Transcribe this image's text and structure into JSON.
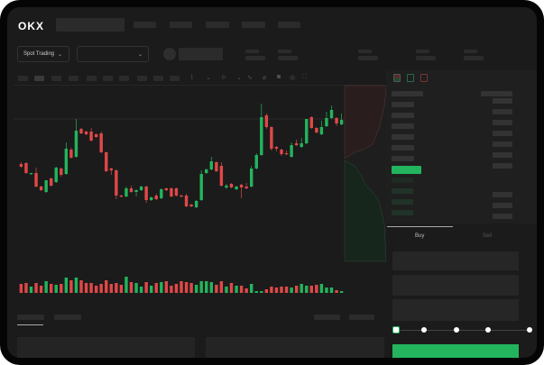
{
  "brand": {
    "logo": "OKX"
  },
  "toolbar": {
    "market_select": "Spot Trading"
  },
  "order_form": {
    "buy_tab": "Buy",
    "sell_tab": "Sell",
    "leverage_slider_value": 0,
    "accent": "#23b45d"
  },
  "colors": {
    "up": "#23b45d",
    "down": "#e04848",
    "background": "#1b1b1b"
  },
  "chart": {
    "type": "candlestick",
    "ohlc": [
      [
        118,
        120,
        114,
        115
      ],
      [
        119,
        120,
        107,
        108
      ],
      [
        107,
        108,
        106,
        108
      ],
      [
        108,
        114,
        92,
        93
      ],
      [
        93,
        94,
        88,
        89
      ],
      [
        87,
        100,
        86,
        100
      ],
      [
        102,
        103,
        93,
        94
      ],
      [
        98,
        115,
        97,
        114
      ],
      [
        113,
        114,
        104,
        106
      ],
      [
        107,
        142,
        106,
        135
      ],
      [
        134,
        136,
        124,
        125
      ],
      [
        126,
        168,
        125,
        155
      ],
      [
        157,
        158,
        151,
        152
      ],
      [
        154,
        155,
        150,
        151
      ],
      [
        154,
        158,
        143,
        144
      ],
      [
        151,
        152,
        147,
        148
      ],
      [
        152,
        154,
        130,
        131
      ],
      [
        131,
        132,
        109,
        110
      ],
      [
        113,
        114,
        106,
        111
      ],
      [
        111,
        112,
        79,
        83
      ],
      [
        83,
        84,
        81,
        82
      ],
      [
        82,
        93,
        81,
        91
      ],
      [
        91,
        94,
        86,
        87
      ],
      [
        87,
        90,
        82,
        89
      ],
      [
        89,
        94,
        88,
        93
      ],
      [
        93,
        94,
        75,
        78
      ],
      [
        78,
        82,
        77,
        81
      ],
      [
        83,
        85,
        78,
        79
      ],
      [
        80,
        91,
        79,
        90
      ],
      [
        91,
        92,
        88,
        89
      ],
      [
        91,
        92,
        81,
        82
      ],
      [
        91,
        92,
        82,
        83
      ],
      [
        83,
        84,
        81,
        82
      ],
      [
        83,
        85,
        70,
        71
      ],
      [
        73,
        74,
        70,
        71
      ],
      [
        70,
        78,
        69,
        77
      ],
      [
        78,
        111,
        77,
        107
      ],
      [
        108,
        113,
        107,
        112
      ],
      [
        112,
        126,
        111,
        121
      ],
      [
        120,
        121,
        109,
        110
      ],
      [
        116,
        120,
        93,
        94
      ],
      [
        92,
        96,
        90,
        94
      ],
      [
        96,
        97,
        91,
        92
      ],
      [
        90,
        94,
        89,
        93
      ],
      [
        95,
        96,
        80,
        92
      ],
      [
        93,
        97,
        90,
        91
      ],
      [
        93,
        116,
        92,
        113
      ],
      [
        113,
        130,
        112,
        128
      ],
      [
        128,
        185,
        127,
        170
      ],
      [
        172,
        174,
        157,
        159
      ],
      [
        159,
        160,
        133,
        135
      ],
      [
        137,
        138,
        132,
        135
      ],
      [
        134,
        135,
        127,
        129
      ],
      [
        130,
        133,
        128,
        129
      ],
      [
        126,
        142,
        125,
        139
      ],
      [
        141,
        145,
        138,
        139
      ],
      [
        137,
        147,
        136,
        141
      ],
      [
        141,
        168,
        140,
        168
      ],
      [
        170,
        171,
        157,
        158
      ],
      [
        158,
        159,
        152,
        153
      ],
      [
        151,
        166,
        150,
        159
      ],
      [
        160,
        176,
        159,
        169
      ],
      [
        169,
        183,
        168,
        178
      ],
      [
        169,
        170,
        160,
        163
      ],
      [
        162,
        174,
        161,
        167
      ]
    ],
    "volume": [
      10,
      11,
      7,
      11,
      8,
      13,
      10,
      9,
      10,
      17,
      14,
      17,
      14,
      11,
      11,
      8,
      10,
      14,
      10,
      11,
      9,
      18,
      12,
      11,
      7,
      12,
      8,
      11,
      12,
      13,
      8,
      10,
      13,
      12,
      11,
      9,
      13,
      13,
      12,
      9,
      13,
      7,
      11,
      8,
      8,
      5,
      10,
      2,
      2,
      4,
      7,
      6,
      7,
      7,
      6,
      8,
      10,
      8,
      8,
      9,
      10,
      6,
      6,
      3,
      2
    ]
  }
}
